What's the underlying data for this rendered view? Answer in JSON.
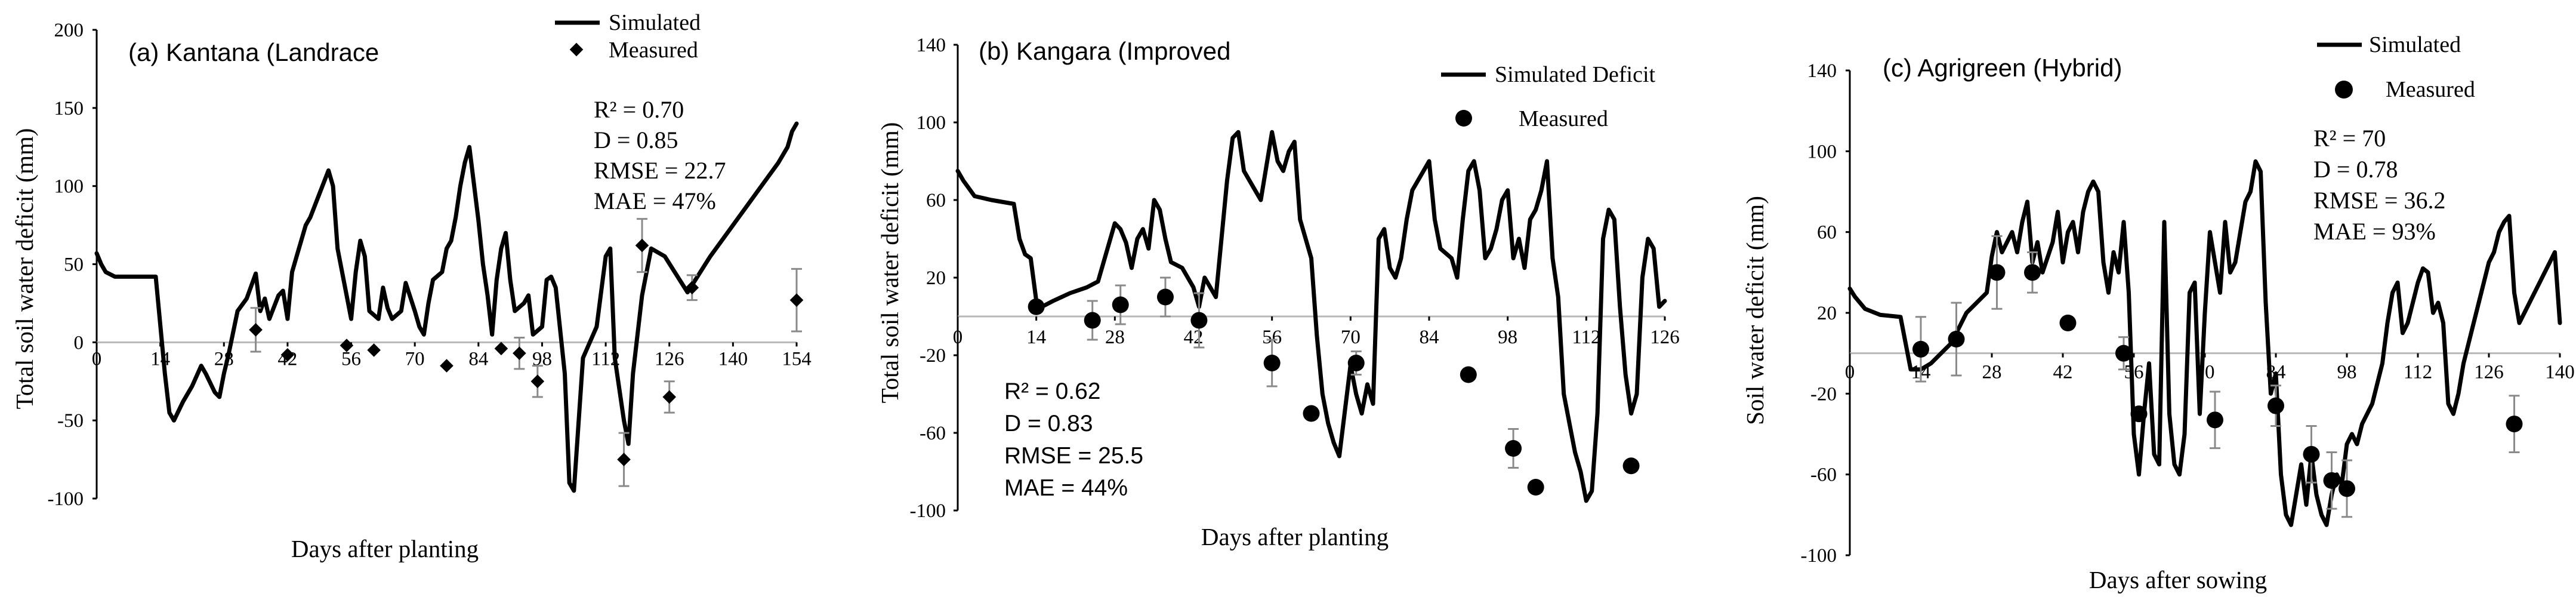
{
  "chart_data": [
    {
      "type": "line",
      "title": "(a) Kantana (Landrace",
      "xlabel": "Days after planting",
      "ylabel": "Total soil water deficit (mm)",
      "xlim": [
        0,
        154
      ],
      "ylim": [
        -100,
        200
      ],
      "xticks": [
        "0",
        "14",
        "28",
        "42",
        "56",
        "70",
        "84",
        "98",
        "112",
        "126",
        "140",
        "154"
      ],
      "yticks": [
        "200",
        "150",
        "100",
        "50",
        "0",
        "-50",
        "-100"
      ],
      "legend": {
        "line": "Simulated",
        "marker": "Measured",
        "marker_shape": "diamond"
      },
      "stats": [
        "R² = 0.70",
        "D = 0.85",
        "RMSE = 22.7",
        "MAE = 47%"
      ],
      "series": [
        {
          "name": "Simulated",
          "x": [
            0,
            1,
            2,
            4,
            6,
            10,
            13,
            15,
            16,
            17,
            19,
            21,
            23,
            24,
            26,
            27,
            28,
            29,
            31,
            33,
            35,
            36,
            37,
            38,
            40,
            41,
            42,
            43,
            44,
            46,
            47,
            49,
            51,
            52,
            53,
            55,
            56,
            57,
            58,
            59,
            60,
            62,
            63,
            64,
            65,
            67,
            68,
            70,
            71,
            72,
            73,
            74,
            76,
            77,
            78,
            79,
            80,
            81,
            82,
            84,
            85,
            86,
            87,
            88,
            89,
            90,
            91,
            92,
            94,
            95,
            96,
            98,
            99,
            100,
            101,
            103,
            104,
            105,
            107,
            110,
            112,
            113,
            114,
            116,
            117,
            118,
            120,
            121,
            122,
            125,
            130,
            135,
            140,
            145,
            150,
            152,
            153,
            154
          ],
          "y": [
            57,
            50,
            45,
            42,
            42,
            42,
            42,
            -20,
            -45,
            -50,
            -38,
            -28,
            -15,
            -20,
            -32,
            -35,
            -20,
            -8,
            20,
            28,
            44,
            20,
            28,
            15,
            30,
            33,
            15,
            45,
            55,
            75,
            80,
            95,
            110,
            100,
            60,
            30,
            15,
            45,
            65,
            55,
            20,
            15,
            35,
            22,
            15,
            20,
            38,
            20,
            10,
            5,
            25,
            40,
            45,
            60,
            65,
            80,
            100,
            115,
            125,
            78,
            50,
            30,
            5,
            40,
            60,
            70,
            40,
            20,
            25,
            30,
            5,
            10,
            40,
            42,
            35,
            -20,
            -90,
            -95,
            -10,
            10,
            55,
            60,
            -10,
            -50,
            -65,
            -20,
            30,
            45,
            60,
            55,
            32,
            55,
            75,
            95,
            115,
            125,
            135,
            140
          ]
        },
        {
          "name": "Measured",
          "x": [
            35,
            42,
            55,
            61,
            77,
            89,
            93,
            97,
            116,
            120,
            126,
            131,
            154
          ],
          "y": [
            8,
            -8,
            -2,
            -5,
            -15,
            -4,
            -7,
            -25,
            -75,
            62,
            -35,
            35,
            27
          ],
          "err": [
            14,
            0,
            0,
            0,
            0,
            0,
            10,
            10,
            17,
            17,
            10,
            8,
            20
          ]
        }
      ]
    },
    {
      "type": "line",
      "title": "(b) Kangara (Improved",
      "xlabel": "Days after planting",
      "ylabel": "Total soil water deficit (mm)",
      "xlim": [
        0,
        126
      ],
      "ylim": [
        -100,
        140
      ],
      "xticks": [
        "0",
        "14",
        "28",
        "42",
        "56",
        "70",
        "84",
        "98",
        "112",
        "126"
      ],
      "yticks": [
        "140",
        "100",
        "60",
        "20",
        "-20",
        "-60",
        "-100"
      ],
      "legend": {
        "line": "Simulated Deficit",
        "marker": "Measured",
        "marker_shape": "circle"
      },
      "stats": [
        "R² = 0.62",
        "D = 0.83",
        "RMSE = 25.5",
        "MAE = 44%"
      ],
      "series": [
        {
          "name": "Simulated",
          "x": [
            0,
            1,
            3,
            6,
            10,
            11,
            12,
            13,
            14,
            15,
            17,
            20,
            23,
            25,
            26,
            28,
            29,
            30,
            31,
            32,
            33,
            34,
            35,
            36,
            37,
            38,
            40,
            41,
            42,
            43,
            44,
            46,
            47,
            48,
            49,
            50,
            51,
            52,
            54,
            56,
            57,
            58,
            59,
            60,
            61,
            63,
            64,
            65,
            66,
            67,
            68,
            70,
            71,
            72,
            73,
            74,
            75,
            76,
            77,
            78,
            79,
            80,
            81,
            83,
            84,
            85,
            86,
            88,
            89,
            90,
            91,
            92,
            93,
            94,
            95,
            96,
            97,
            98,
            99,
            100,
            101,
            102,
            103,
            104,
            105,
            106,
            107,
            108,
            109,
            110,
            111,
            112,
            113,
            114,
            115,
            116,
            117,
            118,
            119,
            120,
            121,
            122,
            123,
            124,
            125,
            126
          ],
          "y": [
            75,
            70,
            62,
            60,
            58,
            40,
            32,
            30,
            8,
            5,
            8,
            12,
            15,
            18,
            28,
            48,
            45,
            38,
            25,
            40,
            45,
            35,
            60,
            55,
            40,
            28,
            25,
            20,
            15,
            5,
            20,
            10,
            40,
            70,
            92,
            95,
            75,
            70,
            60,
            95,
            80,
            75,
            85,
            90,
            50,
            30,
            -10,
            -40,
            -55,
            -65,
            -72,
            -25,
            -40,
            -50,
            -35,
            -45,
            40,
            45,
            25,
            20,
            30,
            50,
            65,
            75,
            80,
            50,
            35,
            30,
            20,
            50,
            75,
            80,
            65,
            30,
            35,
            45,
            60,
            65,
            30,
            40,
            25,
            50,
            55,
            65,
            80,
            30,
            10,
            -40,
            -55,
            -70,
            -80,
            -95,
            -90,
            -50,
            40,
            55,
            50,
            5,
            -30,
            -50,
            -40,
            20,
            40,
            35,
            5,
            8
          ]
        },
        {
          "name": "Measured",
          "x": [
            14,
            24,
            29,
            37,
            43,
            56,
            63,
            71,
            91,
            99,
            103,
            120
          ],
          "y": [
            5,
            -2,
            6,
            10,
            -2,
            -24,
            -50,
            -24,
            -30,
            -68,
            -88,
            -77
          ],
          "err": [
            0,
            10,
            10,
            10,
            14,
            12,
            0,
            6,
            0,
            10,
            0,
            0
          ]
        }
      ]
    },
    {
      "type": "line",
      "title": "(c) Agrigreen (Hybrid)",
      "xlabel": "Days after sowing",
      "ylabel": "Soil water deficit (mm)",
      "xlim": [
        0,
        140
      ],
      "ylim": [
        -100,
        140
      ],
      "xticks": [
        "0",
        "14",
        "28",
        "42",
        "56",
        "70",
        "84",
        "98",
        "112",
        "126",
        "140"
      ],
      "yticks": [
        "140",
        "100",
        "60",
        "20",
        "-20",
        "-60",
        "-100"
      ],
      "legend": {
        "line": "Simulated",
        "marker": "Measured",
        "marker_shape": "circle"
      },
      "stats": [
        "R² = 70",
        "D = 0.78",
        "RMSE = 36.2",
        "MAE = 93%"
      ],
      "series": [
        {
          "name": "Simulated",
          "x": [
            0,
            1,
            3,
            6,
            10,
            12,
            14,
            16,
            18,
            20,
            22,
            23,
            25,
            27,
            28,
            29,
            30,
            31,
            32,
            33,
            34,
            35,
            36,
            37,
            38,
            40,
            41,
            42,
            43,
            44,
            45,
            46,
            47,
            48,
            49,
            50,
            51,
            52,
            53,
            54,
            55,
            56,
            57,
            58,
            59,
            60,
            61,
            62,
            63,
            64,
            65,
            66,
            67,
            68,
            69,
            70,
            71,
            72,
            73,
            74,
            75,
            76,
            77,
            78,
            79,
            80,
            81,
            82,
            83,
            84,
            85,
            86,
            87,
            88,
            89,
            90,
            91,
            92,
            93,
            94,
            95,
            96,
            97,
            98,
            99,
            100,
            101,
            102,
            103,
            104,
            105,
            106,
            107,
            108,
            109,
            110,
            111,
            112,
            113,
            114,
            115,
            116,
            117,
            118,
            119,
            120,
            121,
            122,
            123,
            124,
            125,
            126,
            127,
            128,
            129,
            130,
            131,
            132,
            133,
            134,
            135,
            136,
            137,
            138,
            139,
            140
          ],
          "y": [
            32,
            28,
            22,
            19,
            18,
            -8,
            -8,
            -5,
            0,
            5,
            15,
            20,
            25,
            30,
            48,
            60,
            50,
            55,
            60,
            50,
            65,
            75,
            45,
            55,
            40,
            55,
            70,
            45,
            60,
            65,
            50,
            70,
            80,
            85,
            80,
            45,
            30,
            50,
            40,
            65,
            30,
            -40,
            -60,
            -30,
            -5,
            -50,
            -55,
            65,
            -30,
            -55,
            -60,
            -40,
            30,
            35,
            -30,
            20,
            60,
            45,
            30,
            65,
            40,
            45,
            60,
            75,
            80,
            95,
            90,
            25,
            -20,
            -10,
            -60,
            -80,
            -85,
            -70,
            -55,
            -75,
            -50,
            -70,
            -80,
            -85,
            -70,
            -60,
            -65,
            -45,
            -40,
            -45,
            -35,
            -30,
            -25,
            -15,
            -5,
            15,
            30,
            35,
            10,
            15,
            25,
            35,
            42,
            40,
            20,
            25,
            15,
            -25,
            -30,
            -20,
            -5,
            5,
            15,
            25,
            35,
            45,
            50,
            60,
            65,
            68,
            30,
            15,
            20,
            25,
            30,
            35,
            40,
            45,
            50,
            15
          ]
        },
        {
          "name": "Measured",
          "x": [
            14,
            21,
            29,
            36,
            43,
            54,
            57,
            72,
            84,
            91,
            95,
            98,
            131
          ],
          "y": [
            2,
            7,
            40,
            40,
            15,
            0,
            -30,
            -33,
            -26,
            -50,
            -63,
            -67,
            -35
          ],
          "err": [
            16,
            18,
            18,
            10,
            0,
            8,
            0,
            14,
            10,
            14,
            14,
            14,
            14
          ]
        }
      ]
    }
  ]
}
